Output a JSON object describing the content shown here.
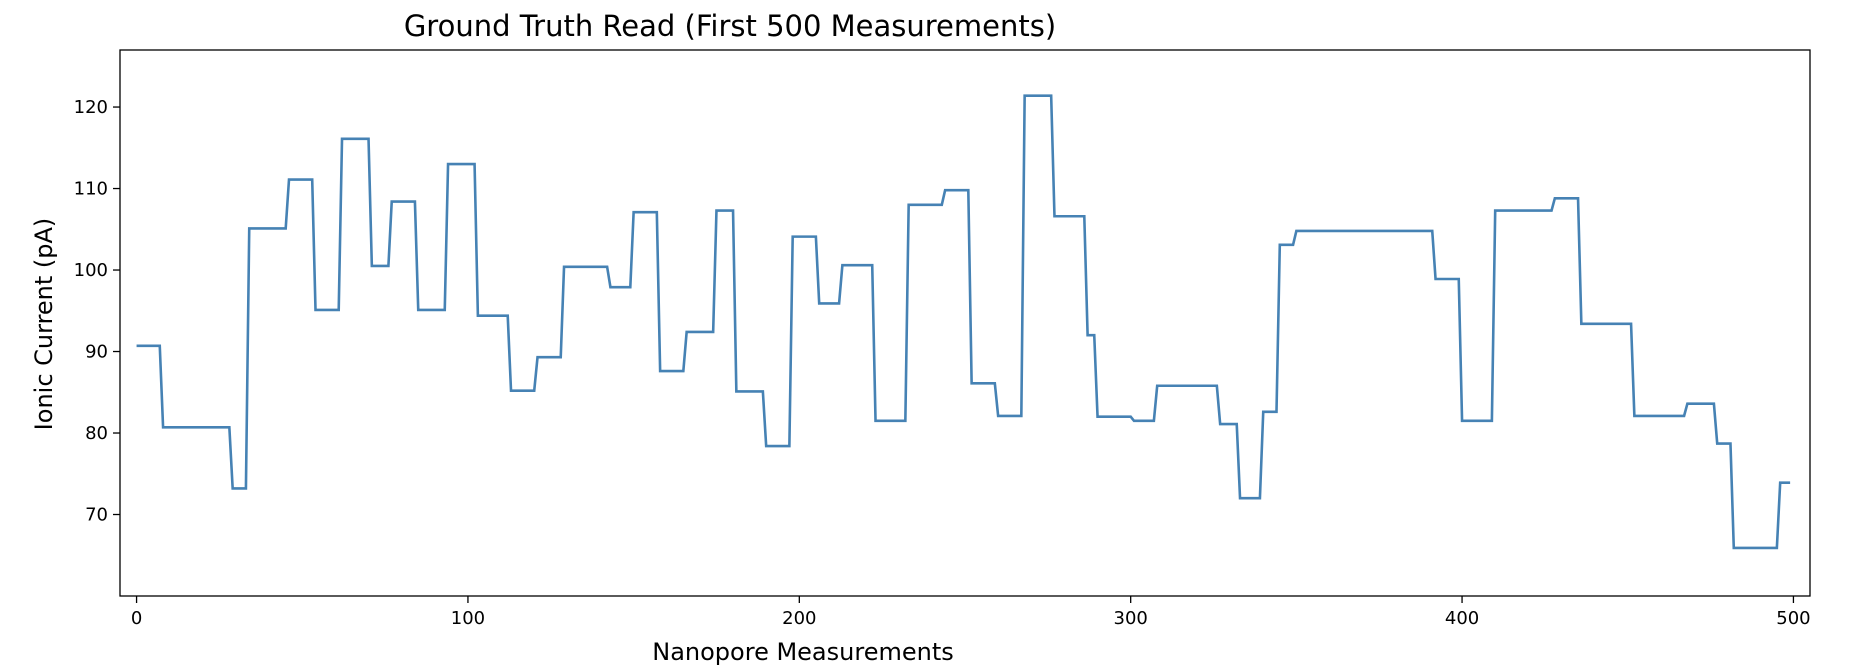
{
  "chart_data": {
    "type": "line",
    "title": "Ground Truth Read (First 500 Measurements)",
    "xlabel": "Nanopore Measurements",
    "ylabel": "Ionic Current (pA)",
    "xlim": [
      -5,
      505
    ],
    "ylim": [
      60,
      127
    ],
    "xticks": [
      0,
      100,
      200,
      300,
      400,
      500
    ],
    "yticks": [
      70,
      80,
      90,
      100,
      110,
      120
    ],
    "grid": false,
    "color": "#4682b4",
    "x": [
      0,
      7,
      8,
      28,
      29,
      33,
      34,
      45,
      46,
      53,
      54,
      61,
      62,
      70,
      71,
      76,
      77,
      84,
      85,
      93,
      94,
      102,
      103,
      112,
      113,
      120,
      121,
      128,
      129,
      142,
      143,
      149,
      150,
      157,
      158,
      165,
      166,
      174,
      175,
      180,
      181,
      189,
      190,
      197,
      198,
      205,
      206,
      212,
      213,
      222,
      223,
      232,
      233,
      243,
      244,
      251,
      252,
      259,
      260,
      267,
      268,
      276,
      277,
      286,
      287,
      289,
      290,
      300,
      301,
      307,
      308,
      326,
      327,
      332,
      333,
      339,
      340,
      344,
      345,
      349,
      350,
      391,
      392,
      399,
      400,
      409,
      410,
      427,
      428,
      435,
      436,
      451,
      452,
      467,
      468,
      476,
      477,
      481,
      482,
      495,
      496,
      499
    ],
    "y": [
      90.7,
      90.7,
      80.7,
      80.7,
      73.2,
      73.2,
      105.1,
      105.1,
      111.1,
      111.1,
      95.1,
      95.1,
      116.1,
      116.1,
      100.5,
      100.5,
      108.4,
      108.4,
      95.1,
      95.1,
      113.0,
      113.0,
      94.4,
      94.4,
      85.2,
      85.2,
      89.3,
      89.3,
      100.4,
      100.4,
      97.9,
      97.9,
      107.1,
      107.1,
      87.6,
      87.6,
      92.4,
      92.4,
      107.3,
      107.3,
      85.1,
      85.1,
      78.4,
      78.4,
      104.1,
      104.1,
      95.9,
      95.9,
      100.6,
      100.6,
      81.5,
      81.5,
      108.0,
      108.0,
      109.8,
      109.8,
      86.1,
      86.1,
      82.1,
      82.1,
      121.4,
      121.4,
      106.6,
      106.6,
      92.0,
      92.0,
      82.0,
      82.0,
      81.5,
      81.5,
      85.8,
      85.8,
      81.1,
      81.1,
      72.0,
      72.0,
      82.6,
      82.6,
      103.1,
      103.1,
      104.8,
      104.8,
      98.9,
      98.9,
      81.5,
      81.5,
      107.3,
      107.3,
      108.8,
      108.8,
      93.4,
      93.4,
      82.1,
      82.1,
      83.6,
      83.6,
      78.7,
      78.7,
      65.9,
      65.9,
      73.9,
      73.9
    ]
  }
}
